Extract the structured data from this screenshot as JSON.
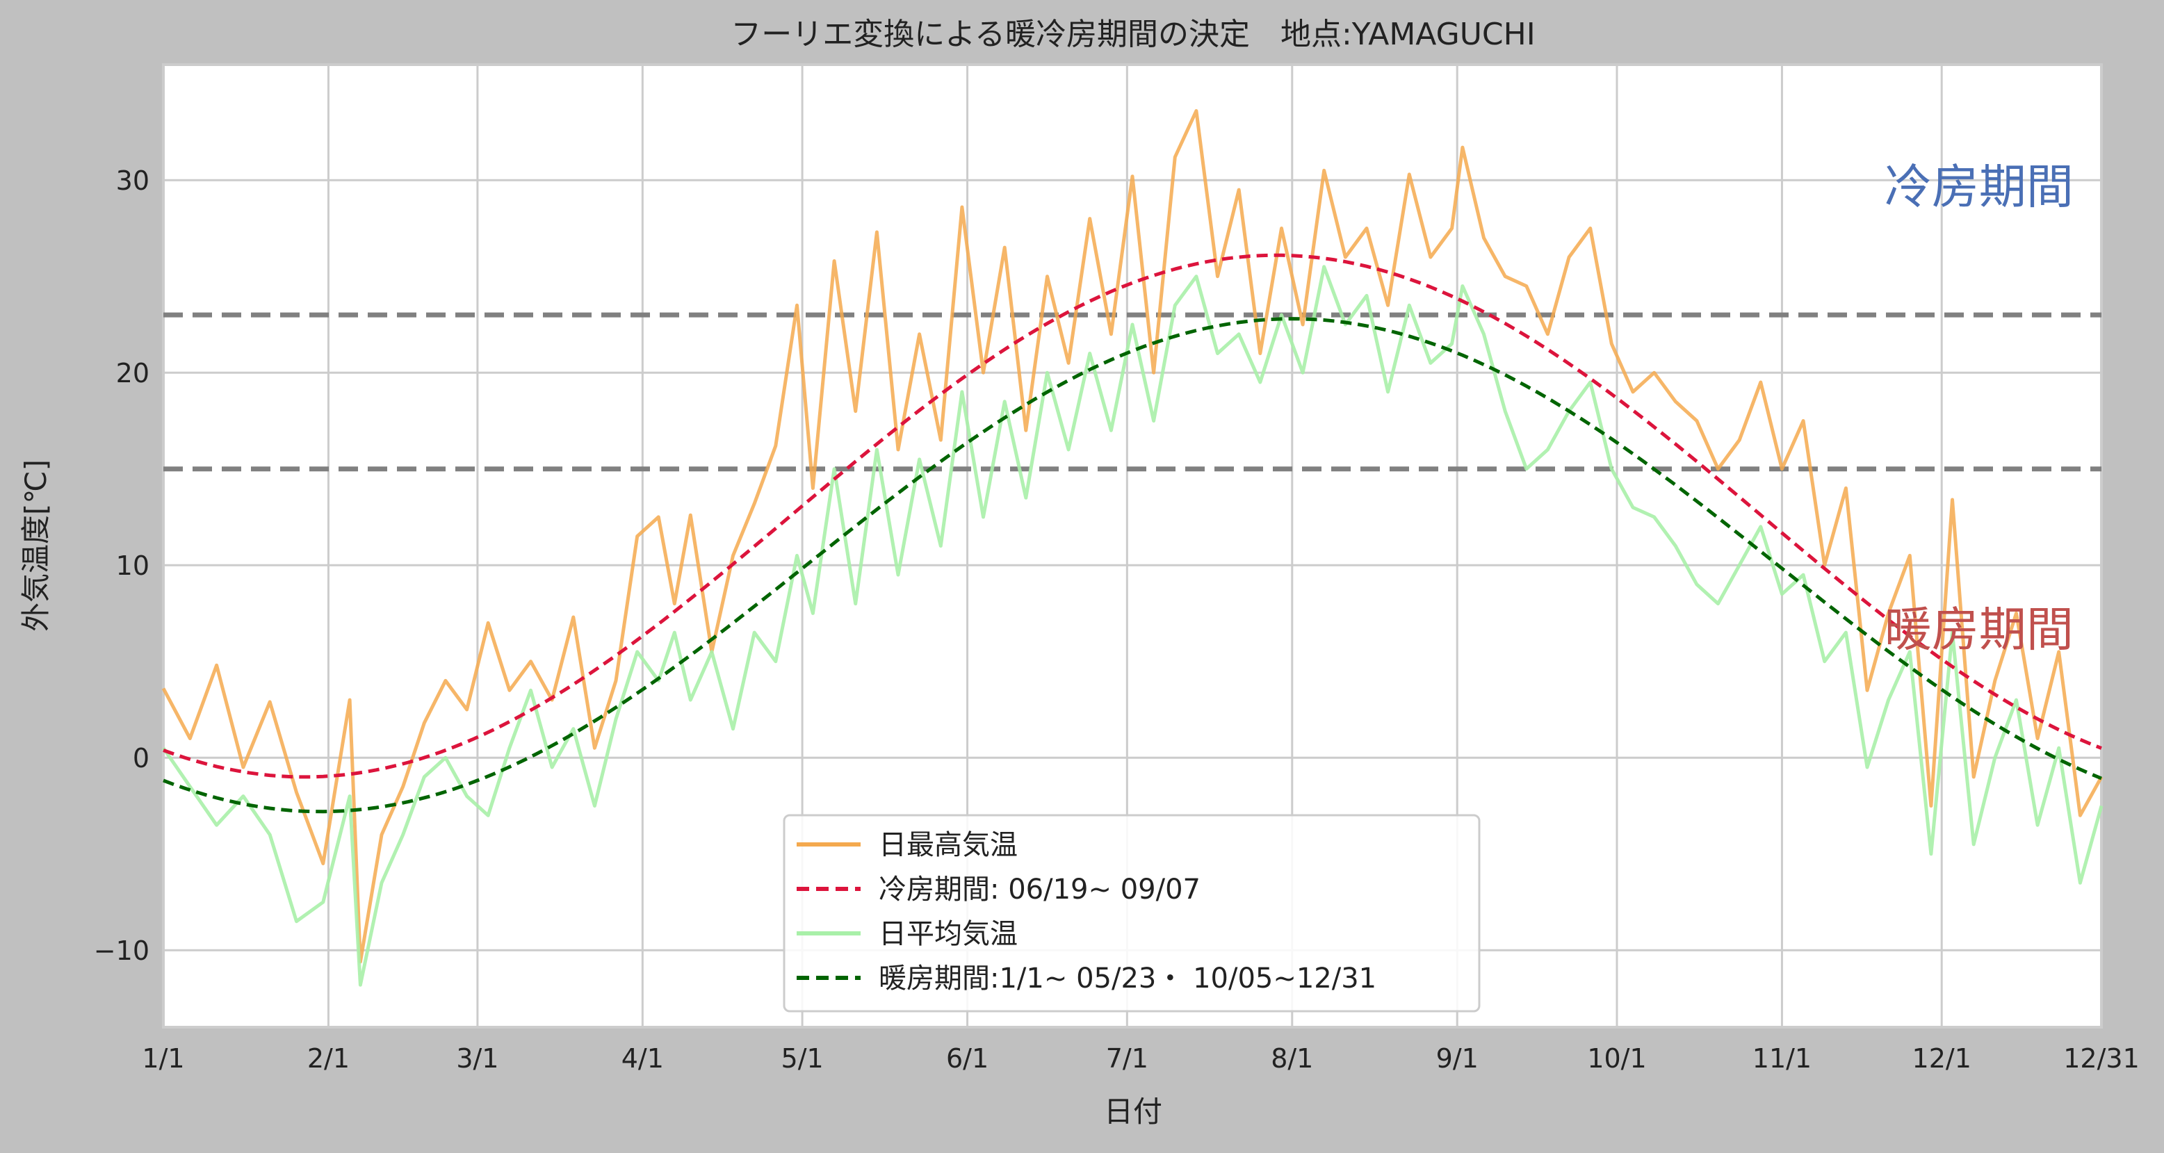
{
  "chart_data": {
    "type": "line",
    "title": "フーリエ変換による暖冷房期間の決定　地点:YAMAGUCHI",
    "xlabel": "日付",
    "ylabel": "外気温度[℃]",
    "xlim": [
      1,
      365
    ],
    "ylim": [
      -14,
      36
    ],
    "grid": true,
    "legend_placement": "bottom-center",
    "x_ticks": [
      {
        "day": 1,
        "label": "1/1"
      },
      {
        "day": 32,
        "label": "2/1"
      },
      {
        "day": 60,
        "label": "3/1"
      },
      {
        "day": 91,
        "label": "4/1"
      },
      {
        "day": 121,
        "label": "5/1"
      },
      {
        "day": 152,
        "label": "6/1"
      },
      {
        "day": 182,
        "label": "7/1"
      },
      {
        "day": 213,
        "label": "8/1"
      },
      {
        "day": 244,
        "label": "9/1"
      },
      {
        "day": 274,
        "label": "10/1"
      },
      {
        "day": 305,
        "label": "11/1"
      },
      {
        "day": 335,
        "label": "12/1"
      },
      {
        "day": 365,
        "label": "12/31"
      }
    ],
    "y_ticks": [
      {
        "value": -10,
        "label": "−10"
      },
      {
        "value": 0,
        "label": "0"
      },
      {
        "value": 10,
        "label": "10"
      },
      {
        "value": 20,
        "label": "20"
      },
      {
        "value": 30,
        "label": "30"
      }
    ],
    "thresholds": [
      {
        "value": 23,
        "color": "#808080"
      },
      {
        "value": 15,
        "color": "#808080"
      }
    ],
    "annotations": [
      {
        "text": "冷房期間",
        "color": "#4a6fb5",
        "day": 342,
        "value": 28.8
      },
      {
        "text": "暖房期間",
        "color": "#c0504d",
        "day": 342,
        "value": 5.8
      }
    ],
    "series": [
      {
        "name": "日最高気温",
        "style": "solid",
        "color": "#f4a94e",
        "points": [
          [
            1,
            3.6
          ],
          [
            6,
            1.0
          ],
          [
            11,
            4.8
          ],
          [
            16,
            -0.5
          ],
          [
            21,
            2.9
          ],
          [
            26,
            -1.8
          ],
          [
            31,
            -5.5
          ],
          [
            36,
            3.0
          ],
          [
            38,
            -10.6
          ],
          [
            42,
            -4.0
          ],
          [
            46,
            -1.5
          ],
          [
            50,
            1.8
          ],
          [
            54,
            4.0
          ],
          [
            58,
            2.5
          ],
          [
            62,
            7.0
          ],
          [
            66,
            3.5
          ],
          [
            70,
            5.0
          ],
          [
            74,
            3.0
          ],
          [
            78,
            7.3
          ],
          [
            82,
            0.5
          ],
          [
            86,
            4.0
          ],
          [
            90,
            11.5
          ],
          [
            94,
            12.5
          ],
          [
            97,
            8.0
          ],
          [
            100,
            12.6
          ],
          [
            104,
            5.5
          ],
          [
            108,
            10.5
          ],
          [
            112,
            13.2
          ],
          [
            116,
            16.2
          ],
          [
            120,
            23.5
          ],
          [
            123,
            14.0
          ],
          [
            127,
            25.8
          ],
          [
            131,
            18.0
          ],
          [
            135,
            27.3
          ],
          [
            139,
            16.0
          ],
          [
            143,
            22.0
          ],
          [
            147,
            16.5
          ],
          [
            151,
            28.6
          ],
          [
            155,
            20.0
          ],
          [
            159,
            26.5
          ],
          [
            163,
            17.0
          ],
          [
            167,
            25.0
          ],
          [
            171,
            20.5
          ],
          [
            175,
            28.0
          ],
          [
            179,
            22.0
          ],
          [
            183,
            30.2
          ],
          [
            187,
            20.0
          ],
          [
            191,
            31.2
          ],
          [
            195,
            33.6
          ],
          [
            199,
            25.0
          ],
          [
            203,
            29.5
          ],
          [
            207,
            21.0
          ],
          [
            211,
            27.5
          ],
          [
            215,
            22.5
          ],
          [
            219,
            30.5
          ],
          [
            223,
            26.0
          ],
          [
            227,
            27.5
          ],
          [
            231,
            23.5
          ],
          [
            235,
            30.3
          ],
          [
            239,
            26.0
          ],
          [
            243,
            27.5
          ],
          [
            245,
            31.7
          ],
          [
            249,
            27.0
          ],
          [
            253,
            25.0
          ],
          [
            257,
            24.5
          ],
          [
            261,
            22.0
          ],
          [
            265,
            26.0
          ],
          [
            269,
            27.5
          ],
          [
            273,
            21.5
          ],
          [
            277,
            19.0
          ],
          [
            281,
            20.0
          ],
          [
            285,
            18.5
          ],
          [
            289,
            17.5
          ],
          [
            293,
            15.0
          ],
          [
            297,
            16.5
          ],
          [
            301,
            19.5
          ],
          [
            305,
            15.0
          ],
          [
            309,
            17.5
          ],
          [
            313,
            10.0
          ],
          [
            317,
            14.0
          ],
          [
            321,
            3.5
          ],
          [
            325,
            7.5
          ],
          [
            329,
            10.5
          ],
          [
            333,
            -2.5
          ],
          [
            337,
            13.4
          ],
          [
            341,
            -1.0
          ],
          [
            345,
            4.0
          ],
          [
            349,
            7.5
          ],
          [
            353,
            1.0
          ],
          [
            357,
            5.5
          ],
          [
            361,
            -3.0
          ],
          [
            365,
            -1.0
          ]
        ]
      },
      {
        "name": "冷房期間: 06/19~ 09/07",
        "style": "dashed",
        "color": "#dc143c",
        "fourier": {
          "mean": 12.55,
          "amplitude": 13.55,
          "peak_day": 210
        }
      },
      {
        "name": "日平均気温",
        "style": "solid",
        "color": "#a8f0a8",
        "points": [
          [
            1,
            0.5
          ],
          [
            6,
            -1.5
          ],
          [
            11,
            -3.5
          ],
          [
            16,
            -2.0
          ],
          [
            21,
            -4.0
          ],
          [
            26,
            -8.5
          ],
          [
            31,
            -7.5
          ],
          [
            36,
            -2.0
          ],
          [
            38,
            -11.8
          ],
          [
            42,
            -6.5
          ],
          [
            46,
            -4.0
          ],
          [
            50,
            -1.0
          ],
          [
            54,
            0.0
          ],
          [
            58,
            -2.0
          ],
          [
            62,
            -3.0
          ],
          [
            66,
            0.5
          ],
          [
            70,
            3.5
          ],
          [
            74,
            -0.5
          ],
          [
            78,
            1.5
          ],
          [
            82,
            -2.5
          ],
          [
            86,
            2.0
          ],
          [
            90,
            5.5
          ],
          [
            94,
            4.0
          ],
          [
            97,
            6.5
          ],
          [
            100,
            3.0
          ],
          [
            104,
            5.5
          ],
          [
            108,
            1.5
          ],
          [
            112,
            6.5
          ],
          [
            116,
            5.0
          ],
          [
            120,
            10.5
          ],
          [
            123,
            7.5
          ],
          [
            127,
            15.0
          ],
          [
            131,
            8.0
          ],
          [
            135,
            16.0
          ],
          [
            139,
            9.5
          ],
          [
            143,
            15.5
          ],
          [
            147,
            11.0
          ],
          [
            151,
            19.0
          ],
          [
            155,
            12.5
          ],
          [
            159,
            18.5
          ],
          [
            163,
            13.5
          ],
          [
            167,
            20.0
          ],
          [
            171,
            16.0
          ],
          [
            175,
            21.0
          ],
          [
            179,
            17.0
          ],
          [
            183,
            22.5
          ],
          [
            187,
            17.5
          ],
          [
            191,
            23.5
          ],
          [
            195,
            25.0
          ],
          [
            199,
            21.0
          ],
          [
            203,
            22.0
          ],
          [
            207,
            19.5
          ],
          [
            211,
            23.0
          ],
          [
            215,
            20.0
          ],
          [
            219,
            25.5
          ],
          [
            223,
            22.5
          ],
          [
            227,
            24.0
          ],
          [
            231,
            19.0
          ],
          [
            235,
            23.5
          ],
          [
            239,
            20.5
          ],
          [
            243,
            21.5
          ],
          [
            245,
            24.5
          ],
          [
            249,
            22.0
          ],
          [
            253,
            18.0
          ],
          [
            257,
            15.0
          ],
          [
            261,
            16.0
          ],
          [
            265,
            18.0
          ],
          [
            269,
            19.5
          ],
          [
            273,
            15.0
          ],
          [
            277,
            13.0
          ],
          [
            281,
            12.5
          ],
          [
            285,
            11.0
          ],
          [
            289,
            9.0
          ],
          [
            293,
            8.0
          ],
          [
            297,
            10.0
          ],
          [
            301,
            12.0
          ],
          [
            305,
            8.5
          ],
          [
            309,
            9.5
          ],
          [
            313,
            5.0
          ],
          [
            317,
            6.5
          ],
          [
            321,
            -0.5
          ],
          [
            325,
            3.0
          ],
          [
            329,
            5.5
          ],
          [
            333,
            -5.0
          ],
          [
            337,
            6.5
          ],
          [
            341,
            -4.5
          ],
          [
            345,
            0.0
          ],
          [
            349,
            3.0
          ],
          [
            353,
            -3.5
          ],
          [
            357,
            0.5
          ],
          [
            361,
            -6.5
          ],
          [
            365,
            -2.5
          ]
        ]
      },
      {
        "name": "暖房期間:1/1~ 05/23・ 10/05~12/31",
        "style": "dashed",
        "color": "#006400",
        "fourier": {
          "mean": 10.0,
          "amplitude": 12.8,
          "peak_day": 213
        }
      }
    ]
  }
}
